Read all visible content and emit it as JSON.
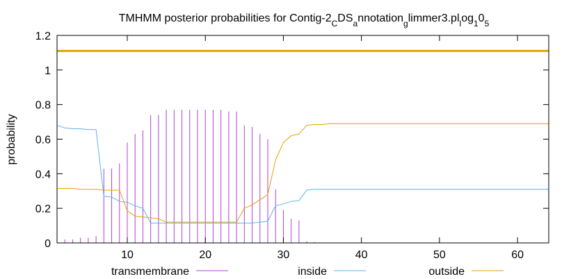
{
  "chart_data": {
    "type": "line",
    "title": "TMHMM posterior probabilities for Contig-2",
    "title_parts": [
      {
        "text": "TMHMM posterior probabilities for Contig-2",
        "sub": false
      },
      {
        "text": "C",
        "sub": true
      },
      {
        "text": "DS",
        "sub": false
      },
      {
        "text": "a",
        "sub": true
      },
      {
        "text": "nnotation",
        "sub": false
      },
      {
        "text": "g",
        "sub": true
      },
      {
        "text": "limmer3.pl",
        "sub": false
      },
      {
        "text": "l",
        "sub": true
      },
      {
        "text": "og",
        "sub": false
      },
      {
        "text": "1",
        "sub": true
      },
      {
        "text": "0",
        "sub": false
      },
      {
        "text": "5",
        "sub": true
      }
    ],
    "xlabel": "",
    "ylabel": "probability",
    "xlim": [
      1,
      64
    ],
    "ylim": [
      0,
      1.2
    ],
    "xticks": [
      10,
      20,
      30,
      40,
      50,
      60
    ],
    "yticks": [
      0,
      0.2,
      0.4,
      0.6,
      0.8,
      1,
      1.2
    ],
    "ytick_labels": [
      "0",
      "0.2",
      "0.4",
      "0.6",
      "0.8",
      "1",
      "1.2"
    ],
    "grid": false,
    "legend_position": "bottom",
    "reference_line": {
      "y": 1.11,
      "color": "#e6a000"
    },
    "series": [
      {
        "name": "transmembrane",
        "style": "impulses",
        "color": "#b040d0",
        "x": [
          1,
          2,
          3,
          4,
          5,
          6,
          7,
          8,
          9,
          10,
          11,
          12,
          13,
          14,
          15,
          16,
          17,
          18,
          19,
          20,
          21,
          22,
          23,
          24,
          25,
          26,
          27,
          28,
          29,
          30,
          31,
          32,
          33,
          34,
          35,
          36,
          37,
          38,
          39,
          40,
          41,
          42,
          43,
          44,
          45,
          46,
          47,
          48,
          49,
          50,
          51,
          52,
          53,
          54,
          55,
          56,
          57,
          58,
          59,
          60,
          61,
          62,
          63,
          64
        ],
        "values": [
          0.01,
          0.02,
          0.02,
          0.03,
          0.03,
          0.04,
          0.43,
          0.43,
          0.46,
          0.58,
          0.63,
          0.65,
          0.74,
          0.74,
          0.77,
          0.77,
          0.77,
          0.77,
          0.77,
          0.77,
          0.77,
          0.77,
          0.76,
          0.76,
          0.68,
          0.67,
          0.63,
          0.6,
          0.31,
          0.19,
          0.14,
          0.13,
          0.01,
          0.005,
          0,
          0,
          0,
          0,
          0,
          0,
          0,
          0,
          0,
          0,
          0,
          0,
          0,
          0,
          0,
          0,
          0,
          0,
          0,
          0,
          0,
          0,
          0,
          0,
          0,
          0,
          0,
          0,
          0,
          0
        ]
      },
      {
        "name": "inside",
        "style": "line",
        "color": "#56b4e9",
        "x": [
          1,
          2,
          3,
          4,
          5,
          6,
          7,
          8,
          9,
          10,
          11,
          12,
          13,
          14,
          15,
          16,
          17,
          18,
          19,
          20,
          21,
          22,
          23,
          24,
          25,
          26,
          27,
          28,
          29,
          30,
          31,
          32,
          33,
          34,
          35,
          36,
          40,
          50,
          60,
          64
        ],
        "values": [
          0.68,
          0.665,
          0.66,
          0.66,
          0.655,
          0.655,
          0.27,
          0.265,
          0.24,
          0.235,
          0.215,
          0.2,
          0.115,
          0.115,
          0.115,
          0.115,
          0.115,
          0.115,
          0.115,
          0.115,
          0.115,
          0.115,
          0.115,
          0.115,
          0.115,
          0.115,
          0.12,
          0.125,
          0.215,
          0.225,
          0.24,
          0.245,
          0.305,
          0.31,
          0.31,
          0.31,
          0.31,
          0.31,
          0.31,
          0.31
        ]
      },
      {
        "name": "outside",
        "style": "line",
        "color": "#e6a000",
        "x": [
          1,
          2,
          3,
          4,
          5,
          6,
          7,
          8,
          9,
          10,
          11,
          12,
          13,
          14,
          15,
          16,
          17,
          18,
          19,
          20,
          21,
          22,
          23,
          24,
          25,
          26,
          27,
          28,
          29,
          30,
          31,
          32,
          33,
          34,
          35,
          36,
          40,
          50,
          60,
          64
        ],
        "values": [
          0.315,
          0.315,
          0.315,
          0.31,
          0.31,
          0.31,
          0.305,
          0.305,
          0.305,
          0.185,
          0.155,
          0.15,
          0.145,
          0.14,
          0.12,
          0.12,
          0.12,
          0.12,
          0.12,
          0.12,
          0.12,
          0.12,
          0.12,
          0.12,
          0.2,
          0.22,
          0.25,
          0.28,
          0.48,
          0.58,
          0.62,
          0.63,
          0.68,
          0.685,
          0.685,
          0.69,
          0.69,
          0.69,
          0.69,
          0.69
        ]
      }
    ]
  }
}
